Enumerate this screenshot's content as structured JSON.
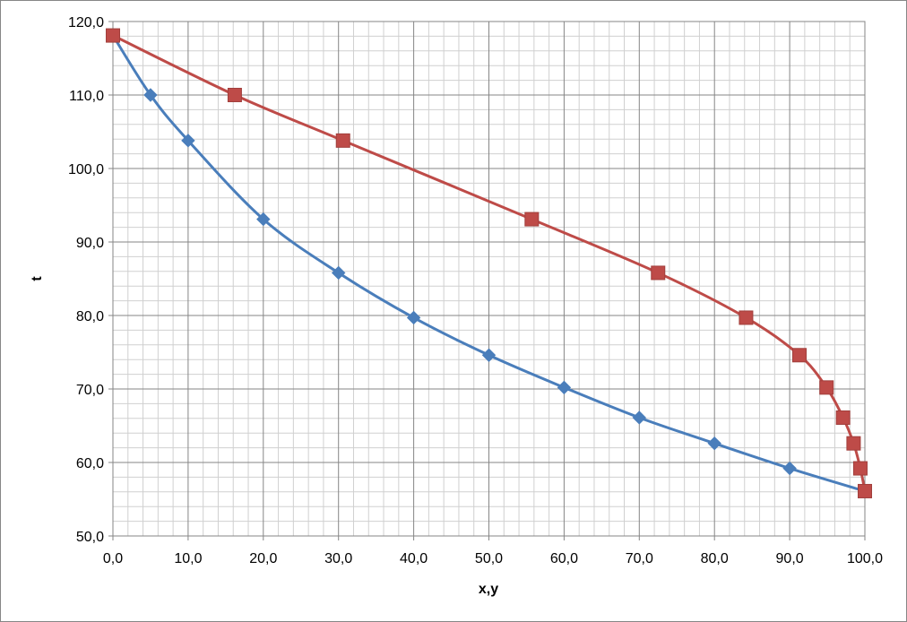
{
  "chart_data": {
    "type": "line",
    "title": "",
    "xlabel": "x,y",
    "ylabel": "t",
    "xlim": [
      0,
      100
    ],
    "ylim": [
      50,
      120
    ],
    "x_ticks": [
      "0,0",
      "10,0",
      "20,0",
      "30,0",
      "40,0",
      "50,0",
      "60,0",
      "70,0",
      "80,0",
      "90,0",
      "100,0"
    ],
    "y_ticks": [
      "50,0",
      "60,0",
      "70,0",
      "80,0",
      "90,0",
      "100,0",
      "110,0",
      "120,0"
    ],
    "grid": true,
    "legend": "none",
    "series": [
      {
        "color": "#4a7ebb",
        "marker": "diamond",
        "smooth": true,
        "points": [
          [
            0,
            118.1
          ],
          [
            5,
            110.0
          ],
          [
            10,
            103.8
          ],
          [
            20,
            93.1
          ],
          [
            30,
            85.8
          ],
          [
            40,
            79.7
          ],
          [
            50,
            74.6
          ],
          [
            60,
            70.2
          ],
          [
            70,
            66.1
          ],
          [
            80,
            62.6
          ],
          [
            90,
            59.2
          ],
          [
            100,
            56.1
          ]
        ]
      },
      {
        "color": "#be4b48",
        "marker": "square",
        "smooth": true,
        "points": [
          [
            0,
            118.1
          ],
          [
            16.2,
            110.0
          ],
          [
            30.6,
            103.8
          ],
          [
            55.7,
            93.1
          ],
          [
            72.5,
            85.8
          ],
          [
            84.2,
            79.7
          ],
          [
            91.3,
            74.6
          ],
          [
            94.9,
            70.2
          ],
          [
            97.1,
            66.1
          ],
          [
            98.5,
            62.6
          ],
          [
            99.4,
            59.2
          ],
          [
            100,
            56.1
          ]
        ]
      }
    ]
  }
}
